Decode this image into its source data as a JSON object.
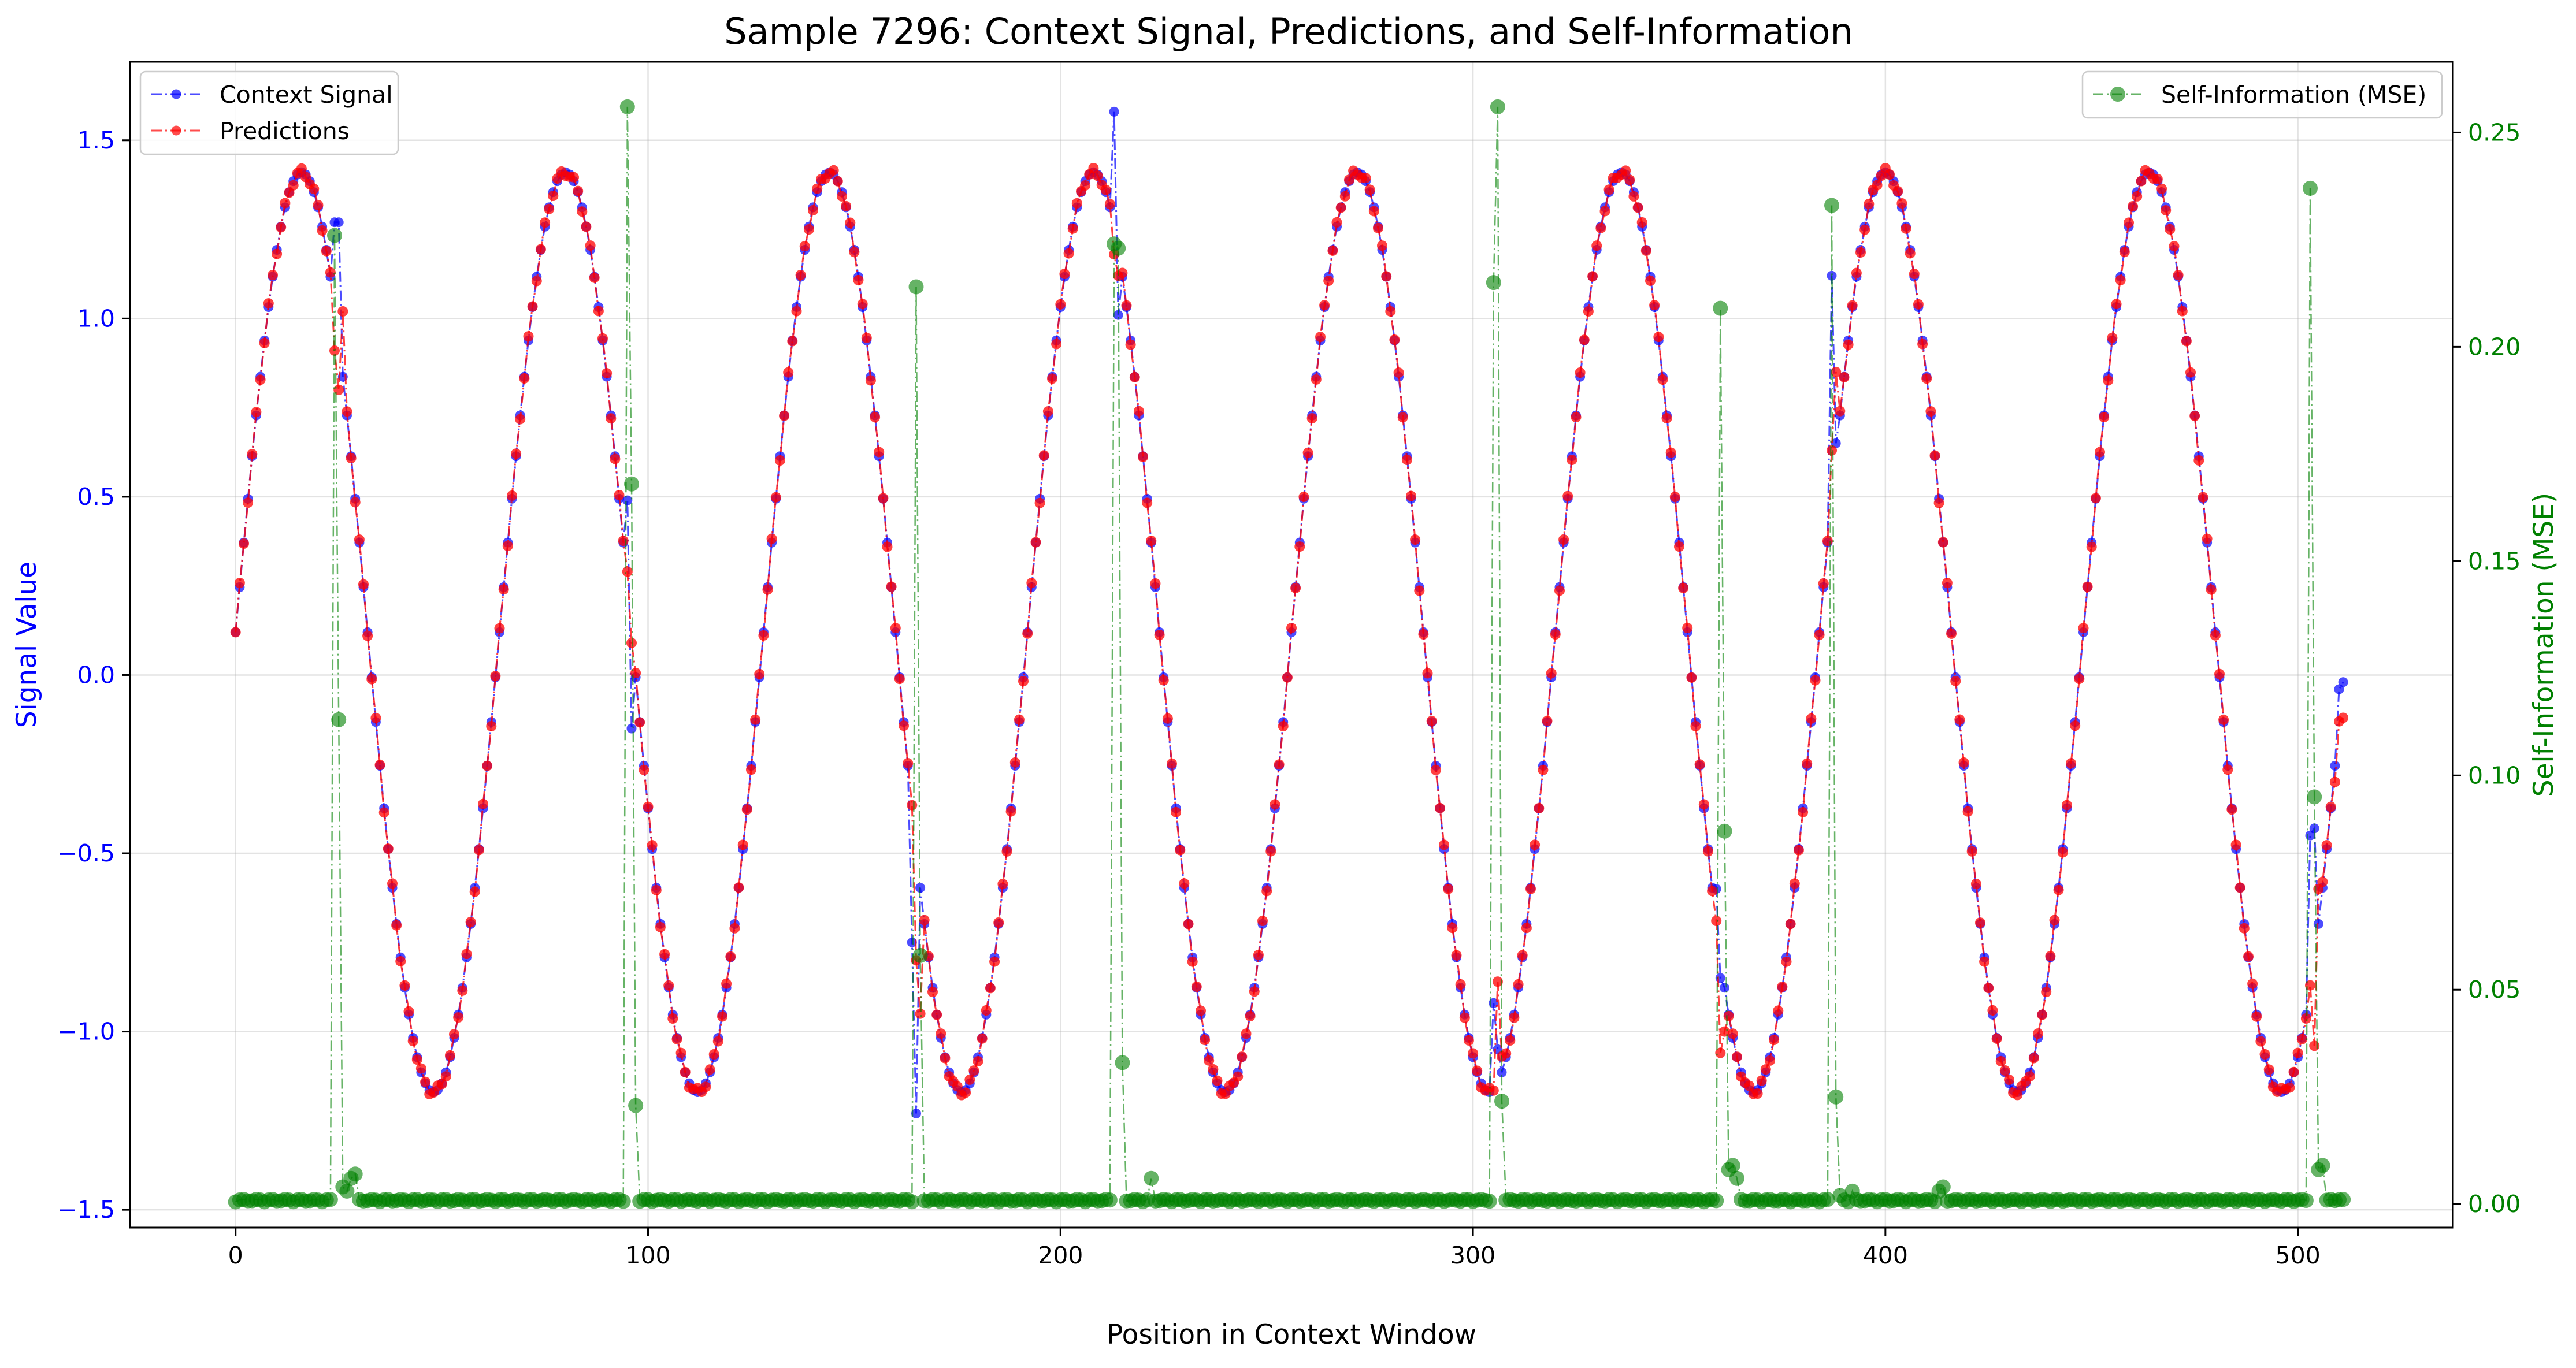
{
  "chart_data": {
    "type": "line",
    "title": "Sample 7296: Context Signal, Predictions, and Self-Information",
    "xlabel": "Position in Context Window",
    "ylabel": "Signal Value",
    "y2label": "Self-Information (MSE)",
    "xlim": [
      -25.6,
      537.6
    ],
    "ylim": [
      -1.55,
      1.72
    ],
    "y2lim": [
      -0.0055,
      0.2665
    ],
    "xticks": [
      0,
      100,
      200,
      300,
      400,
      500
    ],
    "yticks": [
      -1.5,
      -1.0,
      -0.5,
      0.0,
      0.5,
      1.0,
      1.5
    ],
    "y2ticks": [
      0.0,
      0.05,
      0.1,
      0.15,
      0.2,
      0.25
    ],
    "xtick_labels": [
      "0",
      "100",
      "200",
      "300",
      "400",
      "500"
    ],
    "ytick_labels": [
      "−1.5",
      "−1.0",
      "−0.5",
      "0.0",
      "0.5",
      "1.0",
      "1.5"
    ],
    "y2tick_labels": [
      "0.00",
      "0.05",
      "0.10",
      "0.15",
      "0.20",
      "0.25"
    ],
    "grid": true,
    "legend_left_position": "upper-left",
    "legend_right_position": "upper-right",
    "signal_model": {
      "form": "y = 0.12 + 1.29 * sin(2*pi*x/64 + 0)",
      "amplitude": 1.29,
      "offset": 0.12,
      "period": 64,
      "phase": 0,
      "n_points": 512
    },
    "series": [
      {
        "name": "Context Signal",
        "color": "#0000ff",
        "axis": "left",
        "style": "dash-dot with circle markers",
        "overrides": [
          [
            24,
            1.27
          ],
          [
            25,
            1.27
          ],
          [
            95,
            0.49
          ],
          [
            96,
            -0.15
          ],
          [
            164,
            -0.75
          ],
          [
            165,
            -1.23
          ],
          [
            213,
            1.58
          ],
          [
            214,
            1.01
          ],
          [
            305,
            -0.92
          ],
          [
            306,
            -1.05
          ],
          [
            359,
            -0.6
          ],
          [
            360,
            -0.85
          ],
          [
            387,
            1.12
          ],
          [
            388,
            0.65
          ],
          [
            503,
            -0.45
          ],
          [
            504,
            -0.43
          ],
          [
            510,
            -0.04
          ],
          [
            511,
            -0.02
          ]
        ]
      },
      {
        "name": "Predictions",
        "color": "#ff0000",
        "axis": "left",
        "style": "dash-dot with circle markers",
        "overrides": [
          [
            24,
            0.91
          ],
          [
            25,
            0.8
          ],
          [
            26,
            1.02
          ],
          [
            95,
            0.29
          ],
          [
            96,
            0.09
          ],
          [
            165,
            -0.8
          ],
          [
            166,
            -0.95
          ],
          [
            213,
            1.18
          ],
          [
            214,
            1.12
          ],
          [
            306,
            -0.86
          ],
          [
            307,
            -1.07
          ],
          [
            360,
            -1.06
          ],
          [
            361,
            -1.0
          ],
          [
            387,
            0.63
          ],
          [
            388,
            0.85
          ],
          [
            504,
            -1.04
          ],
          [
            505,
            -0.6
          ],
          [
            506,
            -0.58
          ],
          [
            509,
            -0.3
          ],
          [
            510,
            -0.13
          ],
          [
            511,
            -0.12
          ]
        ]
      },
      {
        "name": "Self-Information (MSE)",
        "color": "#008000",
        "axis": "right",
        "style": "dash-dot with large translucent circle markers",
        "baseline": 0.0005,
        "overrides": [
          [
            24,
            0.226
          ],
          [
            25,
            0.113
          ],
          [
            26,
            0.004
          ],
          [
            27,
            0.003
          ],
          [
            28,
            0.006
          ],
          [
            29,
            0.007
          ],
          [
            95,
            0.256
          ],
          [
            96,
            0.168
          ],
          [
            97,
            0.023
          ],
          [
            165,
            0.214
          ],
          [
            166,
            0.058
          ],
          [
            213,
            0.224
          ],
          [
            214,
            0.223
          ],
          [
            215,
            0.033
          ],
          [
            222,
            0.006
          ],
          [
            305,
            0.215
          ],
          [
            306,
            0.256
          ],
          [
            307,
            0.024
          ],
          [
            360,
            0.209
          ],
          [
            361,
            0.087
          ],
          [
            362,
            0.008
          ],
          [
            363,
            0.009
          ],
          [
            364,
            0.006
          ],
          [
            387,
            0.233
          ],
          [
            388,
            0.025
          ],
          [
            389,
            0.002
          ],
          [
            392,
            0.003
          ],
          [
            413,
            0.003
          ],
          [
            414,
            0.004
          ],
          [
            503,
            0.237
          ],
          [
            504,
            0.095
          ],
          [
            505,
            0.008
          ],
          [
            506,
            0.009
          ],
          [
            510,
            0.001
          ]
        ]
      }
    ]
  }
}
